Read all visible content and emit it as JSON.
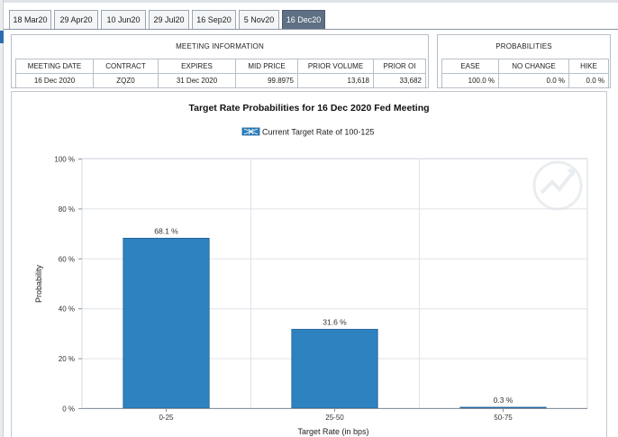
{
  "tabs": [
    {
      "label": "18 Mar20",
      "active": false
    },
    {
      "label": "29 Apr20",
      "active": false
    },
    {
      "label": "10 Jun20",
      "active": false
    },
    {
      "label": "29 Jul20",
      "active": false
    },
    {
      "label": "16 Sep20",
      "active": false
    },
    {
      "label": "5 Nov20",
      "active": false
    },
    {
      "label": "16 Dec20",
      "active": true
    }
  ],
  "meeting_info": {
    "title": "MEETING INFORMATION",
    "headers": [
      "MEETING DATE",
      "CONTRACT",
      "EXPIRES",
      "MID PRICE",
      "PRIOR VOLUME",
      "PRIOR OI"
    ],
    "row": {
      "meeting_date": "16 Dec 2020",
      "contract": "ZQZ0",
      "expires": "31 Dec 2020",
      "mid_price": "99.8975",
      "prior_volume": "13,618",
      "prior_oi": "33,682"
    }
  },
  "probabilities": {
    "title": "PROBABILITIES",
    "headers": [
      "EASE",
      "NO CHANGE",
      "HIKE"
    ],
    "row": {
      "ease": "100.0 %",
      "no_change": "0.0 %",
      "hike": "0.0 %"
    }
  },
  "chart_data": {
    "type": "bar",
    "title": "Target Rate Probabilities for 16 Dec 2020 Fed Meeting",
    "legend_label": "Current Target Rate of 100-125",
    "legend_placement": "top-center",
    "categories": [
      "0-25",
      "25-50",
      "50-75"
    ],
    "values": [
      68.1,
      31.6,
      0.3
    ],
    "data_labels": [
      "68.1 %",
      "31.6 %",
      "0.3 %"
    ],
    "xlabel": "Target Rate (in bps)",
    "ylabel": "Probability",
    "ylim": [
      0,
      100
    ],
    "yticks": [
      0,
      20,
      40,
      60,
      80,
      100
    ],
    "ytick_labels": [
      "0 %",
      "20 %",
      "40 %",
      "60 %",
      "80 %",
      "100 %"
    ],
    "grid": true,
    "bar_color": "#2e82c0",
    "bar_edge_color": "#1f5f94"
  }
}
